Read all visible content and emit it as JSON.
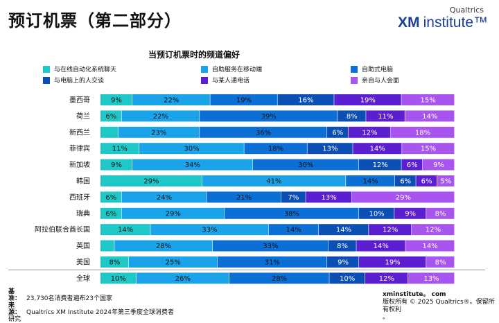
{
  "header": {
    "title": "预订机票（第二部分）",
    "brand_small": "Qualtrics",
    "brand_xm": "XM",
    "brand_institute": "institute™"
  },
  "legend": [
    {
      "label": "与在线自动化系统聊天",
      "color": "#1fc8c8"
    },
    {
      "label": "自助服务在移动端",
      "color": "#1aa3e8"
    },
    {
      "label": "自助式电脑",
      "color": "#0b6fd6"
    },
    {
      "label": "与电脑上的人交谈",
      "color": "#0b4fb5"
    },
    {
      "label": "与某人通电话",
      "color": "#5b1fd1"
    },
    {
      "label": "亲自与人会面",
      "color": "#a855f0"
    }
  ],
  "chart_data": {
    "type": "bar",
    "orientation": "horizontal",
    "stacked": true,
    "title": "当预订机票时的频道偏好",
    "categories": [
      "墨西哥",
      "荷兰",
      "新西兰",
      "菲律宾",
      "新加坡",
      "韩国",
      "西班牙",
      "瑞典",
      "阿拉伯联合酋长国",
      "英国",
      "美国",
      "全球"
    ],
    "series": [
      {
        "name": "与在线自动化系统聊天",
        "values": [
          9,
          6,
          5,
          11,
          9,
          29,
          6,
          6,
          14,
          4,
          8,
          10
        ],
        "labels": [
          "9%",
          "6%",
          "",
          "11%",
          "9%",
          "29%",
          "6%",
          "6%",
          "14%",
          "",
          "8%",
          "10%"
        ]
      },
      {
        "name": "自助服务在移动端",
        "values": [
          22,
          22,
          23,
          30,
          34,
          41,
          24,
          29,
          33,
          28,
          25,
          26
        ],
        "labels": [
          "22%",
          "22%",
          "23%",
          "30%",
          "34%",
          "41%",
          "24%",
          "29%",
          "33%",
          "28%",
          "25%",
          "26%"
        ]
      },
      {
        "name": "自助式电脑",
        "values": [
          19,
          39,
          36,
          18,
          30,
          14,
          21,
          38,
          14,
          33,
          31,
          28
        ],
        "labels": [
          "19%",
          "39%",
          "36%",
          "18%",
          "30%",
          "14%",
          "21%",
          "38%",
          "14%",
          "33%",
          "31%",
          "28%"
        ]
      },
      {
        "name": "与电脑上的人交谈",
        "values": [
          16,
          8,
          6,
          13,
          12,
          6,
          7,
          10,
          14,
          8,
          9,
          10
        ],
        "labels": [
          "16%",
          "8%",
          "6%",
          "13%",
          "12%",
          "6%",
          "7%",
          "10%",
          "14%",
          "8%",
          "9%",
          "10%"
        ]
      },
      {
        "name": "与某人通电话",
        "values": [
          19,
          11,
          12,
          14,
          6,
          6,
          13,
          9,
          12,
          14,
          19,
          12
        ],
        "labels": [
          "19%",
          "11%",
          "12%",
          "14%",
          "6%",
          "6%",
          "13%",
          "9%",
          "12%",
          "14%",
          "19%",
          "12%"
        ]
      },
      {
        "name": "亲自与人会面",
        "values": [
          15,
          14,
          18,
          15,
          9,
          5,
          29,
          8,
          12,
          14,
          8,
          13
        ],
        "labels": [
          "15%",
          "14%",
          "18%",
          "15%",
          "9%",
          "5%",
          "29%",
          "8%",
          "12%",
          "14%",
          "8%",
          "13%"
        ]
      }
    ],
    "text_colors": [
      "#111111",
      "#111111",
      "#111111",
      "#ffffff",
      "#ffffff",
      "#ffffff"
    ],
    "xlim": [
      0,
      100
    ],
    "grid": false,
    "legend_position": "top"
  },
  "footer": {
    "base_key": "基准：",
    "base_text": "23,730名消费者遍布23个国家",
    "source_key": "来源：",
    "source_text": "Qualtrics XM Institute 2024年第三季度全球消费者",
    "source_text2": "研究",
    "site": "xminstitute。 com",
    "copyright": "版权所有 © 2025 Qualtrics®。保留所有权利",
    "copyright2": "。"
  }
}
